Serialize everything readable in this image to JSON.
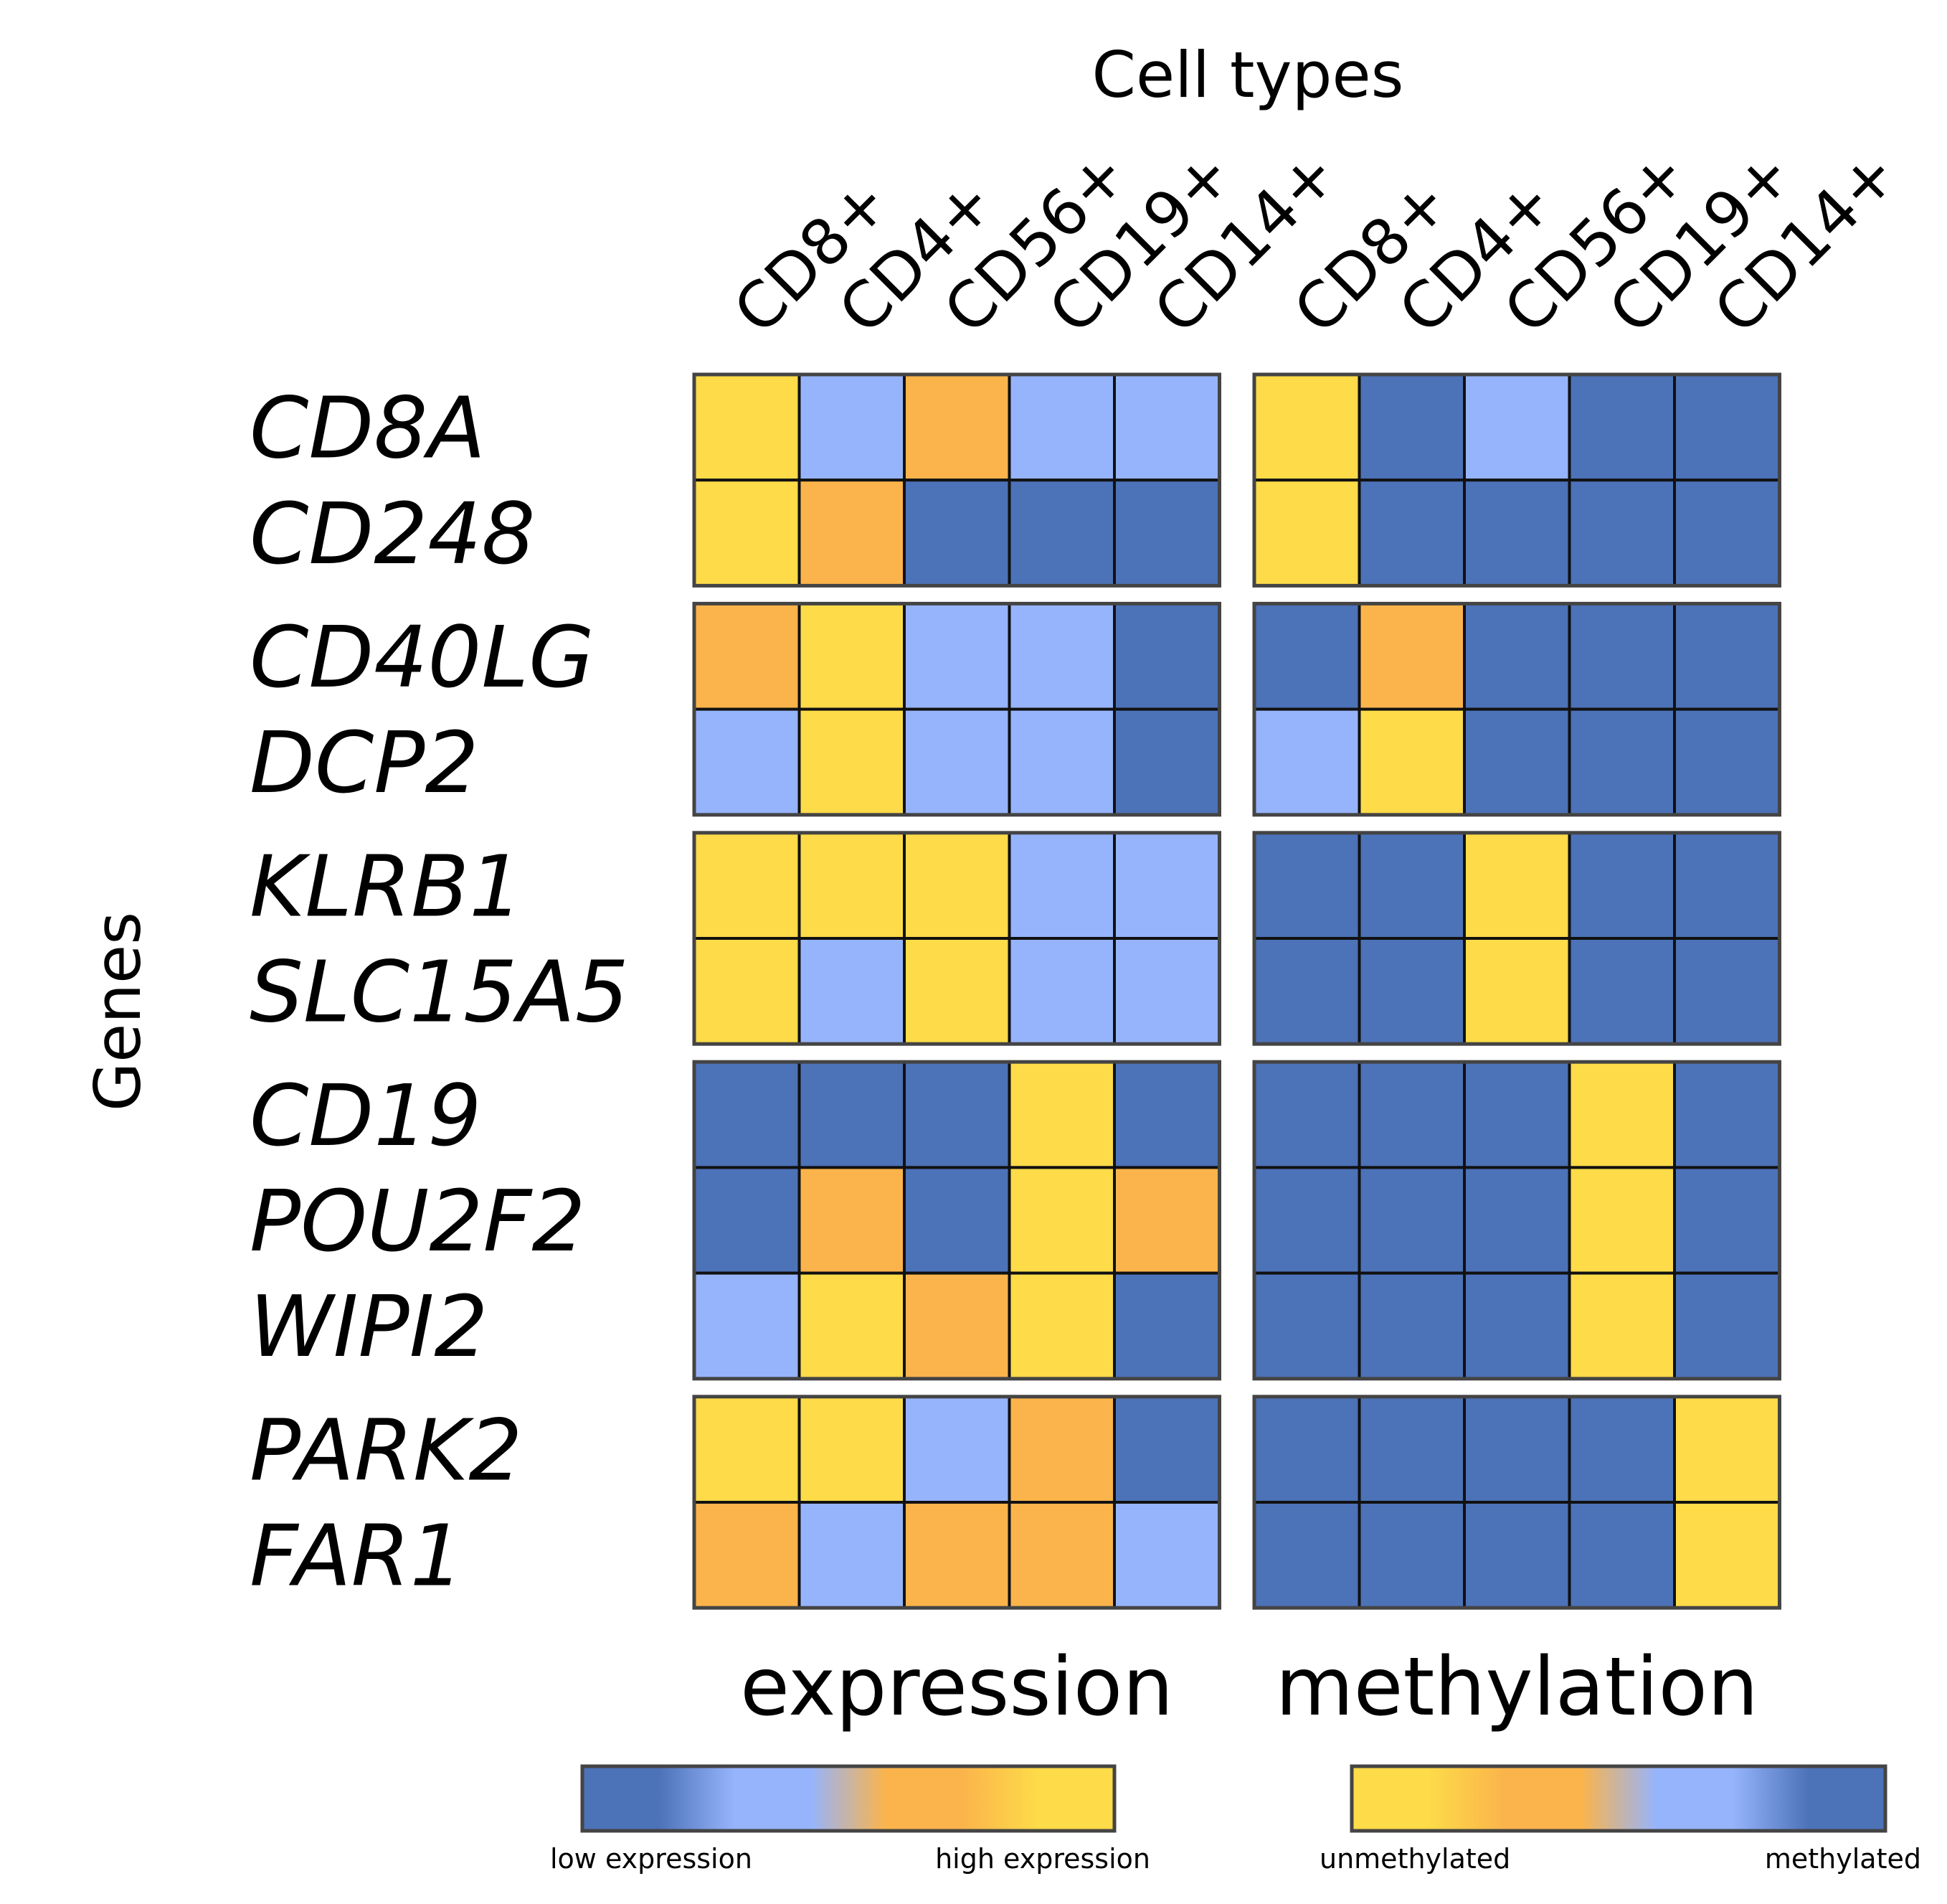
{
  "chart_data": {
    "type": "heatmap",
    "title": "Cell types",
    "xlabel": "Cell types",
    "ylabel": "Genes",
    "columns": [
      "CD8+",
      "CD4+",
      "CD56+",
      "CD19+",
      "CD14+"
    ],
    "genes": [
      "CD8A",
      "CD248",
      "CD40LG",
      "DCP2",
      "KLRB1",
      "SLC15A5",
      "CD19",
      "POU2F2",
      "WIPI2",
      "PARK2",
      "FAR1"
    ],
    "gene_groups": [
      [
        0,
        1
      ],
      [
        2,
        3
      ],
      [
        4,
        5
      ],
      [
        6,
        7,
        8
      ],
      [
        9,
        10
      ]
    ],
    "panels": [
      {
        "name": "expression",
        "scale": "0 = low expression, 1 = high expression",
        "values": [
          [
            1.0,
            0.4,
            0.8,
            0.4,
            0.4
          ],
          [
            1.0,
            0.8,
            0.0,
            0.0,
            0.0
          ],
          [
            0.8,
            1.0,
            0.4,
            0.4,
            0.0
          ],
          [
            0.4,
            1.0,
            0.4,
            0.4,
            0.0
          ],
          [
            1.0,
            1.0,
            1.0,
            0.4,
            0.4
          ],
          [
            1.0,
            0.4,
            1.0,
            0.4,
            0.4
          ],
          [
            0.0,
            0.0,
            0.0,
            1.0,
            0.0
          ],
          [
            0.0,
            0.8,
            0.0,
            1.0,
            0.8
          ],
          [
            0.4,
            1.0,
            0.8,
            1.0,
            0.0
          ],
          [
            1.0,
            1.0,
            0.4,
            0.8,
            0.0
          ],
          [
            0.8,
            0.4,
            0.8,
            0.8,
            0.4
          ]
        ]
      },
      {
        "name": "methylation",
        "scale": "0 = unmethylated, 1 = methylated",
        "values": [
          [
            0.0,
            1.0,
            0.6,
            1.0,
            1.0
          ],
          [
            0.0,
            1.0,
            1.0,
            1.0,
            1.0
          ],
          [
            1.0,
            0.2,
            1.0,
            1.0,
            1.0
          ],
          [
            0.6,
            0.0,
            1.0,
            1.0,
            1.0
          ],
          [
            1.0,
            1.0,
            0.0,
            1.0,
            1.0
          ],
          [
            1.0,
            1.0,
            0.0,
            1.0,
            1.0
          ],
          [
            1.0,
            1.0,
            1.0,
            0.0,
            1.0
          ],
          [
            1.0,
            1.0,
            1.0,
            0.0,
            1.0
          ],
          [
            1.0,
            1.0,
            1.0,
            0.0,
            1.0
          ],
          [
            1.0,
            1.0,
            1.0,
            1.0,
            0.0
          ],
          [
            1.0,
            1.0,
            1.0,
            1.0,
            0.0
          ]
        ]
      }
    ],
    "colorbars": [
      {
        "panel": "expression",
        "left_label": "low expression",
        "right_label": "high expression",
        "stops": [
          "#4c72b8",
          "#4c72b8",
          "#96b4fc",
          "#96b4fc",
          "#fbb44b",
          "#fbb44b",
          "#fddb49",
          "#fddb49"
        ]
      },
      {
        "panel": "methylation",
        "left_label": "unmethylated",
        "right_label": "methylated",
        "stops": [
          "#fddb49",
          "#fddb49",
          "#fbb44b",
          "#fbb44b",
          "#96b4fc",
          "#96b4fc",
          "#4c72b8",
          "#4c72b8"
        ]
      }
    ],
    "colors": {
      "low_dark_blue": "#4c72b8",
      "light_blue": "#96b4fc",
      "orange": "#fbb44b",
      "yellow": "#fddb49",
      "mid_gray": "#b8b0a8",
      "grid": "#111111",
      "frame": "#444444"
    }
  }
}
